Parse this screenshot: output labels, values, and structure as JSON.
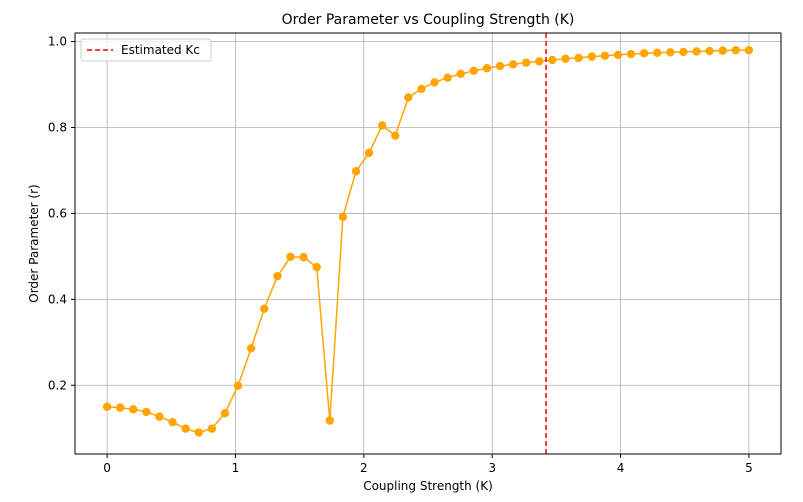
{
  "chart_data": {
    "type": "line",
    "title": "Order Parameter vs Coupling Strength (K)",
    "xlabel": "Coupling Strength (K)",
    "ylabel": "Order Parameter (r)",
    "xlim": [
      -0.25,
      5.25
    ],
    "ylim": [
      0.04,
      1.02
    ],
    "xticks": [
      0,
      1,
      2,
      3,
      4,
      5
    ],
    "yticks": [
      0.2,
      0.4,
      0.6,
      0.8,
      1.0
    ],
    "xtick_labels": [
      "0",
      "1",
      "2",
      "3",
      "4",
      "5"
    ],
    "ytick_labels": [
      "0.2",
      "0.4",
      "0.6",
      "0.8",
      "1.0"
    ],
    "grid": true,
    "legend_position": "top-left",
    "series": [
      {
        "color": "#ffa500",
        "marker": "circle",
        "x": [
          0,
          0.102,
          0.204,
          0.306,
          0.408,
          0.51,
          0.612,
          0.714,
          0.816,
          0.918,
          1.02,
          1.122,
          1.224,
          1.327,
          1.429,
          1.531,
          1.633,
          1.735,
          1.837,
          1.939,
          2.041,
          2.143,
          2.245,
          2.347,
          2.449,
          2.551,
          2.653,
          2.755,
          2.857,
          2.959,
          3.061,
          3.163,
          3.265,
          3.367,
          3.469,
          3.571,
          3.673,
          3.776,
          3.878,
          3.98,
          4.082,
          4.184,
          4.286,
          4.388,
          4.49,
          4.592,
          4.694,
          4.796,
          4.898,
          5.0
        ],
        "y": [
          0.15,
          0.148,
          0.144,
          0.138,
          0.127,
          0.114,
          0.099,
          0.09,
          0.099,
          0.135,
          0.199,
          0.286,
          0.378,
          0.454,
          0.499,
          0.498,
          0.475,
          0.118,
          0.592,
          0.698,
          0.741,
          0.805,
          0.781,
          0.87,
          0.89,
          0.905,
          0.916,
          0.925,
          0.932,
          0.938,
          0.943,
          0.947,
          0.951,
          0.954,
          0.957,
          0.96,
          0.962,
          0.965,
          0.967,
          0.969,
          0.971,
          0.973,
          0.974,
          0.975,
          0.976,
          0.977,
          0.978,
          0.979,
          0.98,
          0.98
        ]
      }
    ],
    "reference_line": {
      "name": "Estimated Kc",
      "x": 3.42,
      "color": "#ff0000",
      "style": "dashed"
    }
  }
}
